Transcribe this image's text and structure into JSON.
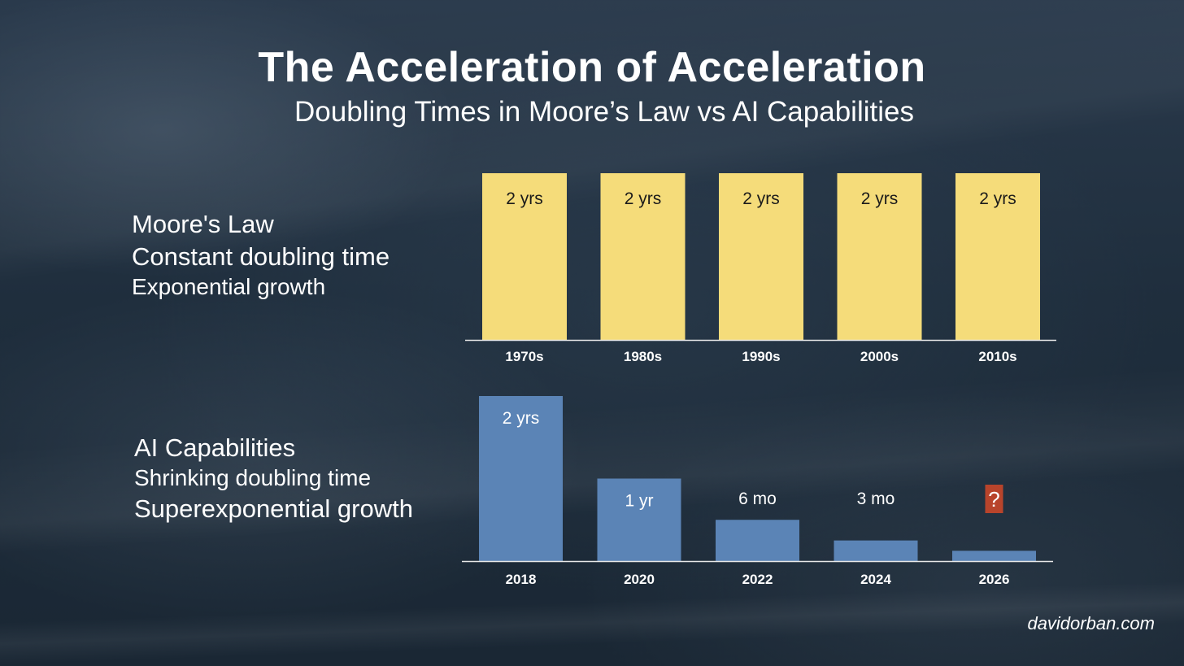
{
  "title": "The Acceleration of Acceleration",
  "subtitle": "Doubling Times in Moore’s Law vs AI Capabilities",
  "moore_label": {
    "line1": "Moore's Law",
    "line2": "Constant doubling time",
    "line3": "Exponential growth"
  },
  "ai_label": {
    "line1": "AI Capabilities",
    "line2": "Shrinking doubling time",
    "line3": "Superexponential growth"
  },
  "watermark": "davidorban.com",
  "colors": {
    "moore_bar": "#f5dc7a",
    "ai_bar": "#5b84b6",
    "question_badge": "#b8442b",
    "axis": "#e8e8e8",
    "text": "#ffffff",
    "moore_value_text": "#1a1a1a"
  },
  "chart_data": [
    {
      "type": "bar",
      "categories": [
        "1970s",
        "1980s",
        "1990s",
        "2000s",
        "2010s"
      ],
      "values": [
        24,
        24,
        24,
        24,
        24
      ],
      "data_labels": [
        "2 yrs",
        "2 yrs",
        "2 yrs",
        "2 yrs",
        "2 yrs"
      ],
      "value_unit": "months",
      "ylim": [
        0,
        24
      ],
      "grid": false
    },
    {
      "type": "bar",
      "categories": [
        "2018",
        "2020",
        "2022",
        "2024",
        "2026"
      ],
      "values": [
        24,
        12,
        6,
        3,
        1.5
      ],
      "data_labels": [
        "2 yrs",
        "1 yr",
        "6 mo",
        "3 mo",
        "?"
      ],
      "value_unit": "months",
      "ylim": [
        0,
        24
      ],
      "grid": false
    }
  ]
}
